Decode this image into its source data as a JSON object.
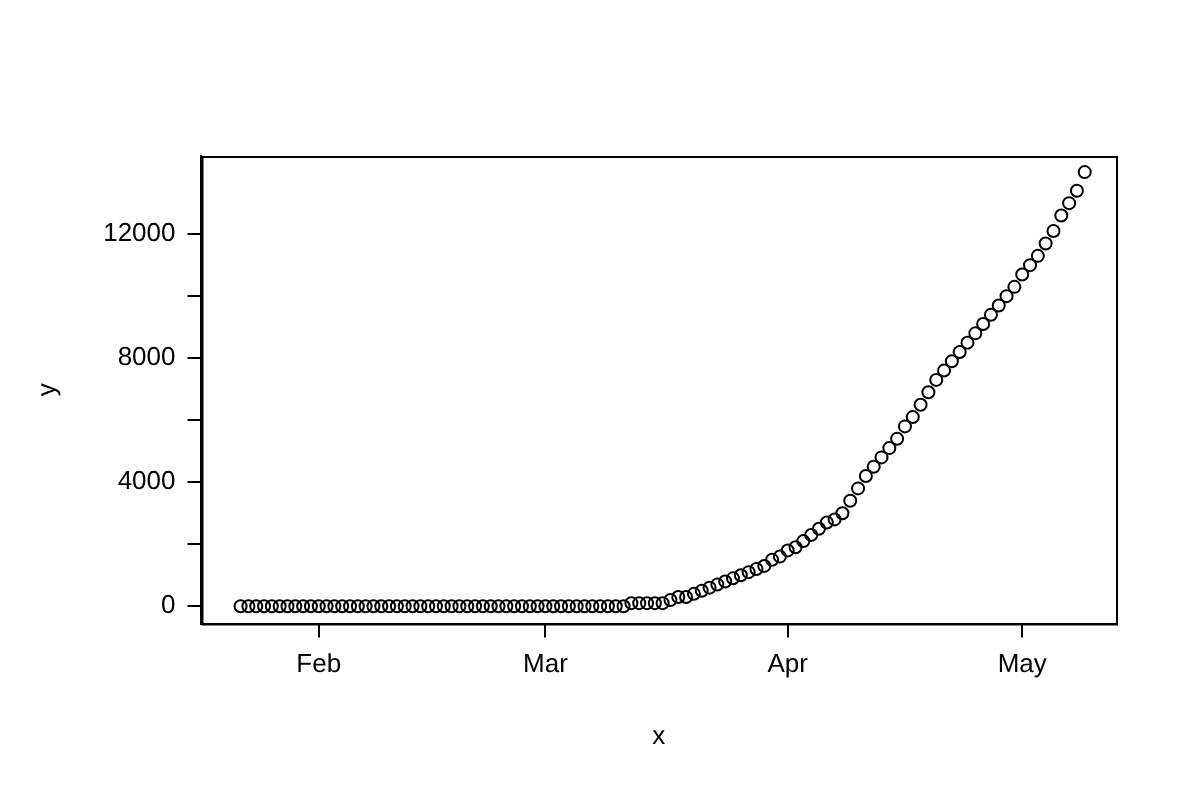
{
  "chart_data": {
    "type": "scatter",
    "xlabel": "x",
    "ylabel": "y",
    "marker": "circle",
    "grid": false,
    "legend": false,
    "xlim": [
      "--01-17",
      "--05-13"
    ],
    "xticks": [
      {
        "value": "--02-01",
        "label": "Feb"
      },
      {
        "value": "--03-01",
        "label": "Mar"
      },
      {
        "value": "--04-01",
        "label": "Apr"
      },
      {
        "value": "--05-01",
        "label": "May"
      }
    ],
    "ylim": [
      -560,
      14520
    ],
    "yticks": [
      0,
      {
        "value": 2000,
        "label": null
      },
      4000,
      {
        "value": 6000,
        "label": null
      },
      8000,
      {
        "value": 10000,
        "label": null
      },
      12000
    ],
    "series": [
      {
        "color": "#000000",
        "x": [
          "--01-22",
          "--01-23",
          "--01-24",
          "--01-25",
          "--01-26",
          "--01-27",
          "--01-28",
          "--01-29",
          "--01-30",
          "--01-31",
          "--02-01",
          "--02-02",
          "--02-03",
          "--02-04",
          "--02-05",
          "--02-06",
          "--02-07",
          "--02-08",
          "--02-09",
          "--02-10",
          "--02-11",
          "--02-12",
          "--02-13",
          "--02-14",
          "--02-15",
          "--02-16",
          "--02-17",
          "--02-18",
          "--02-19",
          "--02-20",
          "--02-21",
          "--02-22",
          "--02-23",
          "--02-24",
          "--02-25",
          "--02-26",
          "--02-27",
          "--02-28",
          "--02-29",
          "--03-01",
          "--03-02",
          "--03-03",
          "--03-04",
          "--03-05",
          "--03-06",
          "--03-07",
          "--03-08",
          "--03-09",
          "--03-10",
          "--03-11",
          "--03-12",
          "--03-13",
          "--03-14",
          "--03-15",
          "--03-16",
          "--03-17",
          "--03-18",
          "--03-19",
          "--03-20",
          "--03-21",
          "--03-22",
          "--03-23",
          "--03-24",
          "--03-25",
          "--03-26",
          "--03-27",
          "--03-28",
          "--03-29",
          "--03-30",
          "--03-31",
          "--04-01",
          "--04-02",
          "--04-03",
          "--04-04",
          "--04-05",
          "--04-06",
          "--04-07",
          "--04-08",
          "--04-09",
          "--04-10",
          "--04-11",
          "--04-12",
          "--04-13",
          "--04-14",
          "--04-15",
          "--04-16",
          "--04-17",
          "--04-18",
          "--04-19",
          "--04-20",
          "--04-21",
          "--04-22",
          "--04-23",
          "--04-24",
          "--04-25",
          "--04-26",
          "--04-27",
          "--04-28",
          "--04-29",
          "--04-30",
          "--05-01",
          "--05-02",
          "--05-03",
          "--05-04",
          "--05-05",
          "--05-06",
          "--05-07",
          "--05-08",
          "--05-09"
        ],
        "values": [
          0,
          0,
          0,
          0,
          0,
          0,
          0,
          0,
          0,
          0,
          0,
          0,
          0,
          0,
          0,
          0,
          0,
          0,
          0,
          0,
          0,
          0,
          0,
          0,
          0,
          0,
          0,
          0,
          0,
          0,
          0,
          0,
          0,
          0,
          0,
          0,
          0,
          0,
          0,
          0,
          0,
          0,
          0,
          0,
          0,
          0,
          0,
          0,
          0,
          0,
          100,
          100,
          100,
          100,
          100,
          200,
          300,
          300,
          400,
          500,
          600,
          700,
          800,
          900,
          1000,
          1100,
          1200,
          1300,
          1500,
          1600,
          1800,
          1900,
          2100,
          2300,
          2500,
          2700,
          2800,
          3000,
          3400,
          3800,
          4200,
          4500,
          4800,
          5100,
          5400,
          5800,
          6100,
          6500,
          6900,
          7300,
          7600,
          7900,
          8200,
          8500,
          8800,
          9100,
          9400,
          9700,
          10000,
          10300,
          10700,
          11000,
          11300,
          11700,
          12100,
          12600,
          13000,
          13400,
          14000
        ]
      }
    ]
  }
}
